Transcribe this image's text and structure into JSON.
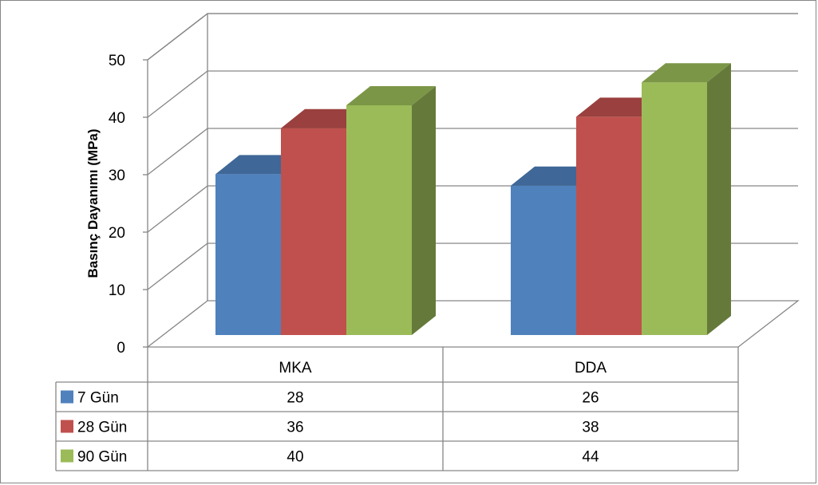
{
  "chart_data": {
    "type": "bar",
    "subtype": "3d-clustered-with-data-table",
    "categories": [
      "MKA",
      "DDA"
    ],
    "series": [
      {
        "name": "7 Gün",
        "values": [
          28,
          26
        ],
        "color": "#4F81BD"
      },
      {
        "name": "28 Gün",
        "values": [
          36,
          38
        ],
        "color": "#C0504D"
      },
      {
        "name": "90 Gün",
        "values": [
          40,
          44
        ],
        "color": "#9BBB59"
      }
    ],
    "title": "",
    "xlabel": "",
    "ylabel": "Basınç Dayanımı (MPa)",
    "ylim": [
      0,
      50
    ],
    "yticks": [
      0,
      10,
      20,
      30,
      40,
      50
    ],
    "grid": true,
    "legend": "data-table"
  }
}
